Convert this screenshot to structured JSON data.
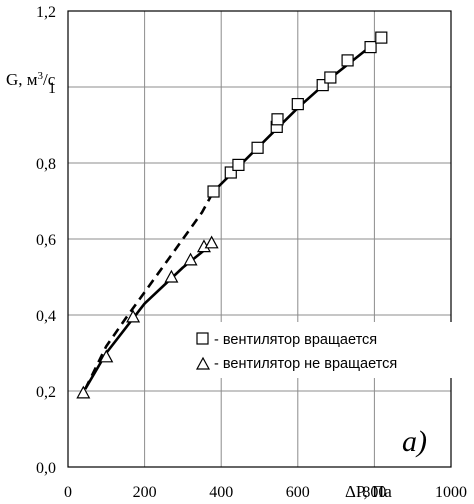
{
  "chart_data": {
    "type": "scatter",
    "xlabel": "ΔP, Па",
    "ylabel_main": "G, м",
    "ylabel_sup": "3",
    "ylabel_tail": "/с",
    "xlim": [
      0,
      1000
    ],
    "ylim": [
      0.0,
      1.2
    ],
    "x_ticks": [
      0,
      200,
      400,
      600,
      800,
      1000
    ],
    "x_tick_labels": [
      "0",
      "200",
      "400",
      "600",
      "800",
      "1000"
    ],
    "y_ticks": [
      0.0,
      0.2,
      0.4,
      0.6,
      0.8,
      1.0,
      1.2
    ],
    "y_tick_labels": [
      "0,0",
      "0,2",
      "0,4",
      "0,6",
      "0,8",
      "1",
      "1,2"
    ],
    "grid": true,
    "legend_position": "bottom-right",
    "panel_label": "а)",
    "series": [
      {
        "name": "- вентилятор вращается",
        "marker": "square",
        "x": [
          380,
          425,
          445,
          495,
          545,
          547,
          600,
          665,
          685,
          730,
          790,
          818
        ],
        "y": [
          0.725,
          0.775,
          0.795,
          0.84,
          0.895,
          0.915,
          0.955,
          1.005,
          1.025,
          1.07,
          1.105,
          1.13
        ]
      },
      {
        "name": "- вентилятор не вращается",
        "marker": "triangle",
        "x": [
          40,
          100,
          170,
          270,
          320,
          355,
          375
        ],
        "y": [
          0.195,
          0.29,
          0.395,
          0.5,
          0.545,
          0.58,
          0.59
        ]
      }
    ],
    "fits": [
      {
        "style": "solid",
        "x": [
          45,
          100,
          200,
          300,
          380
        ],
        "y": [
          0.205,
          0.3,
          0.43,
          0.525,
          0.59
        ]
      },
      {
        "style": "dashed",
        "x": [
          45,
          100,
          150,
          200,
          250,
          300,
          350,
          380
        ],
        "y": [
          0.205,
          0.318,
          0.39,
          0.46,
          0.53,
          0.6,
          0.67,
          0.725
        ]
      },
      {
        "style": "solid",
        "x": [
          380,
          450,
          500,
          550,
          600,
          650,
          700,
          750,
          800,
          820
        ],
        "y": [
          0.725,
          0.795,
          0.845,
          0.895,
          0.945,
          0.99,
          1.035,
          1.075,
          1.115,
          1.13
        ]
      }
    ]
  }
}
